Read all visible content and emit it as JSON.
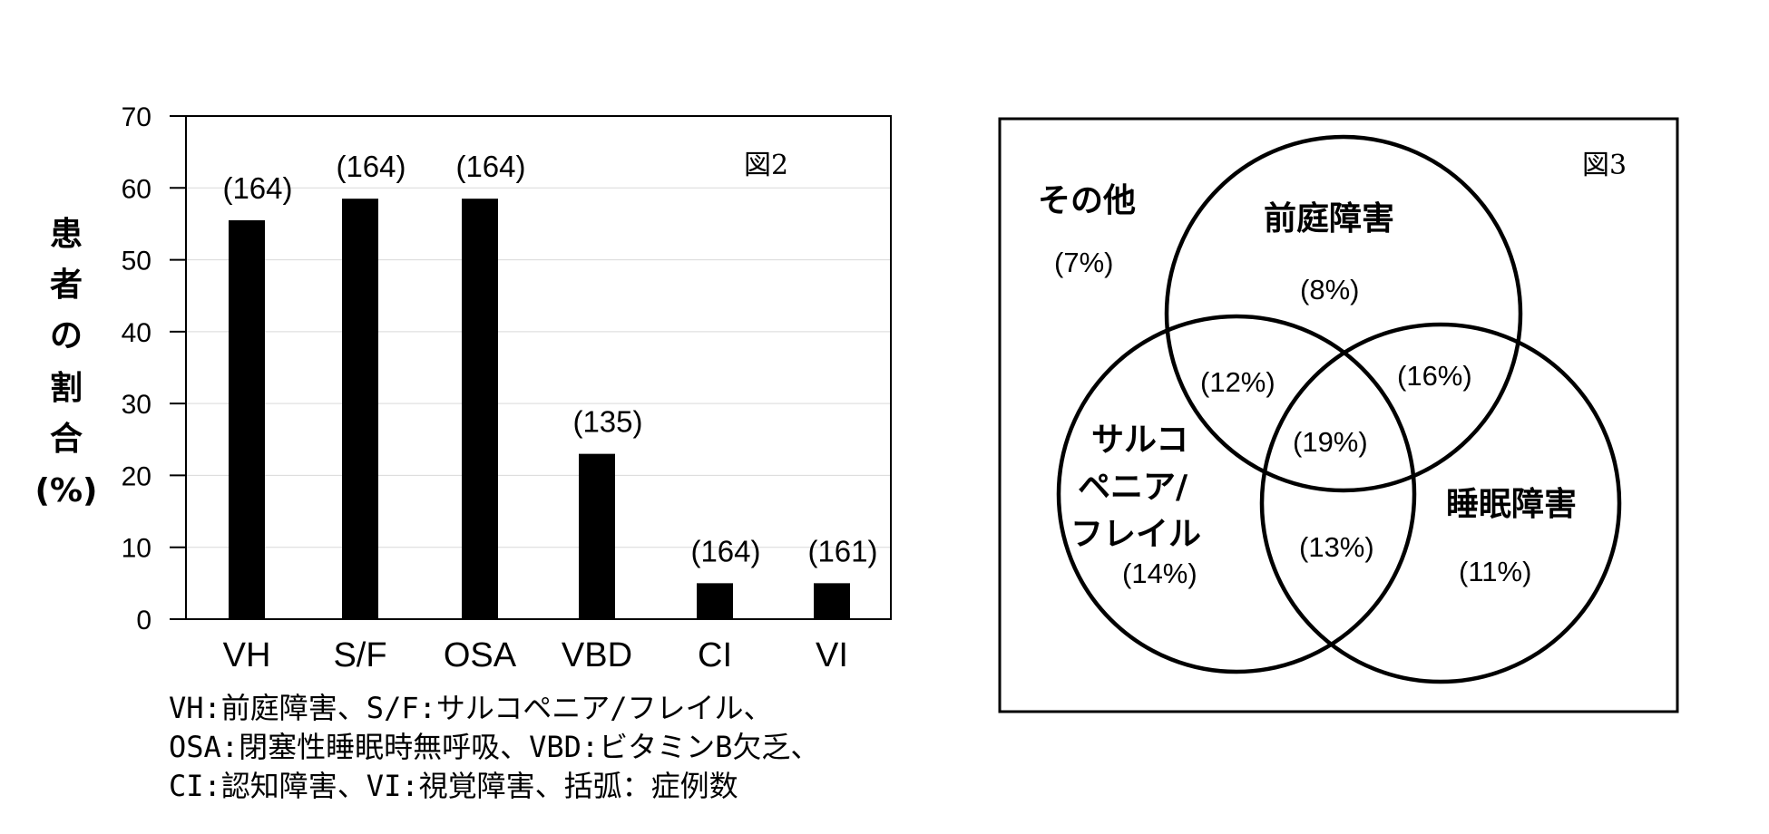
{
  "chart_data": [
    {
      "type": "bar",
      "categories": [
        "VH",
        "S/F",
        "OSA",
        "VBD",
        "CI",
        "VI"
      ],
      "values": [
        55.5,
        58.5,
        58.5,
        23,
        5,
        5
      ],
      "counts": [
        "(164)",
        "(164)",
        "(164)",
        "(135)",
        "(164)",
        "(161)"
      ],
      "ylabel_chars": [
        "患",
        "者",
        "の",
        "割",
        "合",
        "(%)"
      ],
      "ylim": [
        0,
        70
      ],
      "yticks": [
        "0",
        "10",
        "20",
        "30",
        "40",
        "50",
        "60",
        "70"
      ],
      "grid": true,
      "figure_label": "図2"
    },
    {
      "type": "venn",
      "figure_label": "図3",
      "sets": [
        "前庭障害",
        "サルコペニア/フレイル",
        "睡眠障害"
      ],
      "regions": {
        "outside": {
          "label": "その他",
          "value": "(7%)"
        },
        "vestibular_only": {
          "label": "前庭障害",
          "value": "(8%)"
        },
        "sarcopenia_only": {
          "label_lines": [
            "サルコ",
            "ペニア/",
            "フレイル"
          ],
          "value": "(14%)"
        },
        "sleep_only": {
          "label": "睡眠障害",
          "value": "(11%)"
        },
        "vestibular_sarcopenia": {
          "value": "(12%)"
        },
        "vestibular_sleep": {
          "value": "(16%)"
        },
        "sarcopenia_sleep": {
          "value": "(13%)"
        },
        "all_three": {
          "value": "(19%)"
        }
      }
    }
  ],
  "caption": {
    "line1": "VH:前庭障害、S/F:サルコペニア/フレイル、",
    "line2": "OSA:閉塞性睡眠時無呼吸、VBD:ビタミンB欠乏、",
    "line3": "CI:認知障害、VI:視覚障害、括弧：症例数"
  }
}
